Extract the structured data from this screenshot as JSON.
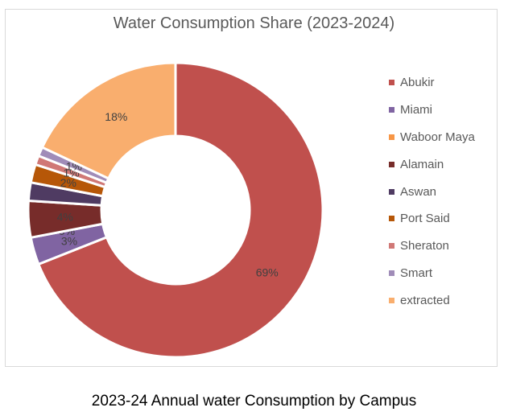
{
  "chart_data": {
    "type": "pie",
    "variant": "donut",
    "title": "Water Consumption Share (2023-2024)",
    "categories": [
      "Abukir",
      "Miami",
      "Waboor Maya",
      "Alamain",
      "Aswan",
      "Port Said",
      "Sheraton",
      "Smart",
      "extracted"
    ],
    "values": [
      69,
      3,
      0,
      4,
      2,
      2,
      1,
      1,
      18
    ],
    "data_labels": [
      "69%",
      "3%",
      "0%",
      "4%",
      "",
      "2%",
      "1%",
      "1%",
      "18%"
    ],
    "colors": [
      "#C0504D",
      "#8064A2",
      "#F79646",
      "#772C2A",
      "#4F3B62",
      "#B65708",
      "#D07876",
      "#A08CB8",
      "#F9AE6E"
    ],
    "legend_position": "right",
    "start_angle": "top",
    "direction": "clockwise"
  },
  "caption": "2023-24 Annual water Consumption by Campus"
}
